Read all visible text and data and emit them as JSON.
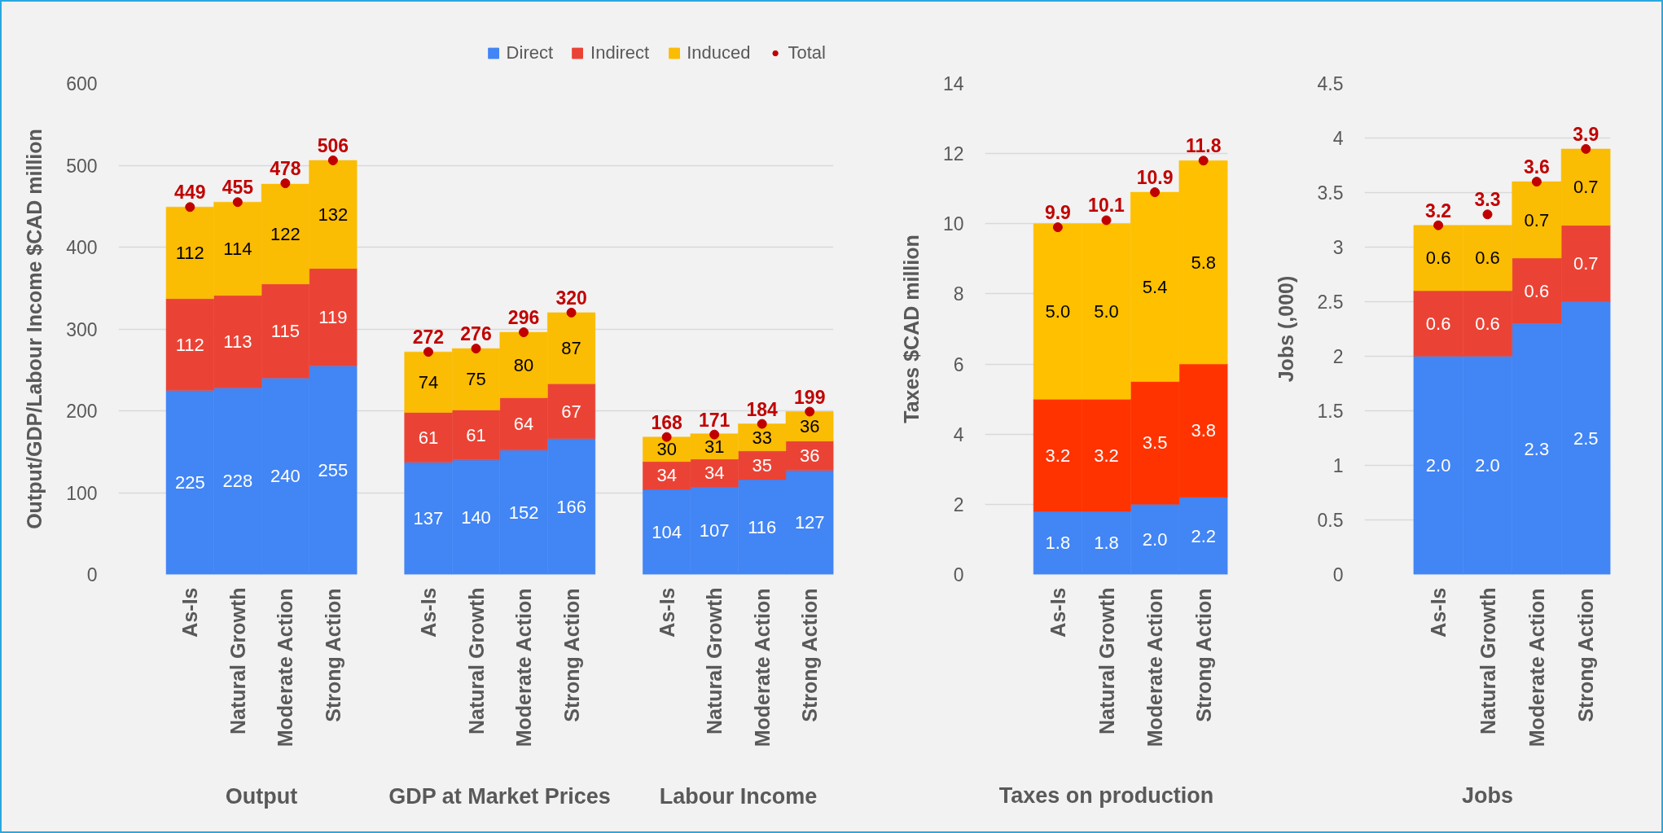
{
  "chart_data": [
    {
      "type": "bar",
      "stacked": true,
      "categories": [
        "As-Is",
        "Natural Growth",
        "Moderate Action",
        "Strong Action",
        "As-Is",
        "Natural Growth",
        "Moderate Action",
        "Strong Action",
        "As-Is",
        "Natural Growth",
        "Moderate Action",
        "Strong Action"
      ],
      "ylabel": "Output/GDP/Labour Income $CAD million",
      "annotations": [
        "Output",
        "GDP at Market Prices",
        "Labour Income"
      ],
      "series": [
        {
          "name": "Direct",
          "color": "#4285f4",
          "values": [
            225,
            228,
            240,
            255,
            137,
            140,
            152,
            166,
            104,
            107,
            116,
            127
          ]
        },
        {
          "name": "Indirect",
          "color": "#ea4335",
          "values": [
            112,
            113,
            115,
            119,
            61,
            61,
            64,
            67,
            34,
            34,
            35,
            36
          ]
        },
        {
          "name": "Induced",
          "color": "#fbbc04",
          "values": [
            112,
            114,
            122,
            132,
            74,
            75,
            80,
            87,
            30,
            31,
            33,
            36
          ]
        },
        {
          "name": "Total",
          "type": "scatter",
          "color": "#c00000",
          "values": [
            449,
            455,
            478,
            506,
            272,
            276,
            296,
            320,
            168,
            171,
            184,
            199
          ]
        }
      ],
      "ylim": [
        0,
        600
      ],
      "yticks": [
        0,
        100,
        200,
        300,
        400,
        500,
        600
      ],
      "grid": "y",
      "legend": "top right",
      "data_labels": true,
      "marker": "circle"
    },
    {
      "type": "bar",
      "stacked": true,
      "categories": [
        "As-Is",
        "Natural Growth",
        "Moderate Action",
        "Strong Action"
      ],
      "xlabel": "Taxes on production",
      "ylabel": "Taxes $CAD million",
      "series": [
        {
          "color": "#4285f4",
          "values": [
            1.8,
            1.8,
            2.0,
            2.2
          ],
          "value_labels": [
            "1.8",
            "1.8",
            "2.0",
            "2.2"
          ]
        },
        {
          "color": "#ff3300",
          "values": [
            3.2,
            3.2,
            3.5,
            3.8
          ],
          "value_labels": [
            "3.2",
            "3.2",
            "3.5",
            "3.8"
          ]
        },
        {
          "color": "#ffc000",
          "values": [
            5.0,
            5.0,
            5.4,
            5.8
          ],
          "value_labels": [
            "5.0",
            "5.0",
            "5.4",
            "5.8"
          ]
        },
        {
          "type": "scatter",
          "color": "#c00000",
          "values": [
            9.9,
            10.1,
            10.9,
            11.8
          ],
          "value_labels": [
            "9.9",
            "10.1",
            "10.9",
            "11.8"
          ]
        }
      ],
      "ylim": [
        0,
        14
      ],
      "yticks": [
        0,
        2,
        4,
        6,
        8,
        10,
        12,
        14
      ],
      "grid": "y",
      "marker": "circle"
    },
    {
      "type": "bar",
      "stacked": true,
      "categories": [
        "As-Is",
        "Natural Growth",
        "Moderate Action",
        "Strong Action"
      ],
      "xlabel": "Jobs",
      "ylabel": "Jobs (,000)",
      "series": [
        {
          "color": "#4285f4",
          "values": [
            2.0,
            2.0,
            2.3,
            2.5
          ],
          "value_labels": [
            "2.0",
            "2.0",
            "2.3",
            "2.5"
          ]
        },
        {
          "color": "#ea4335",
          "values": [
            0.6,
            0.6,
            0.6,
            0.7
          ],
          "value_labels": [
            "0.6",
            "0.6",
            "0.6",
            "0.7"
          ]
        },
        {
          "color": "#fbbc04",
          "values": [
            0.6,
            0.6,
            0.7,
            0.7
          ],
          "value_labels": [
            "0.6",
            "0.6",
            "0.7",
            "0.7"
          ]
        },
        {
          "type": "scatter",
          "color": "#c00000",
          "values": [
            3.2,
            3.3,
            3.6,
            3.9
          ],
          "value_labels": [
            "3.2",
            "3.3",
            "3.6",
            "3.9"
          ]
        }
      ],
      "ylim": [
        0,
        4.5
      ],
      "yticks": [
        0,
        0.5,
        1,
        1.5,
        2,
        2.5,
        3,
        3.5,
        4,
        4.5
      ],
      "grid": "y",
      "marker": "circle"
    }
  ]
}
